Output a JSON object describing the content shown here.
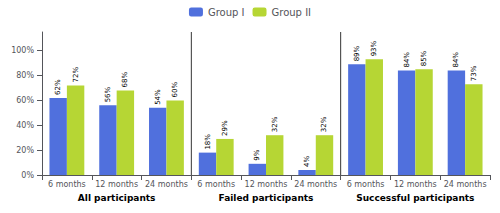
{
  "chart_data": {
    "type": "bar",
    "categories": [
      "6 months",
      "12 months",
      "24 months",
      "6 months",
      "12 months",
      "24 months",
      "6 months",
      "12 months",
      "24 months"
    ],
    "annotations": [
      "All participants",
      "Failed participants",
      "Successful participants"
    ],
    "series": [
      {
        "name": "Group I",
        "values": [
          62,
          56,
          54,
          18,
          9,
          4,
          89,
          84,
          84
        ],
        "value_labels": [
          "62%",
          "56%",
          "54%",
          "18%",
          "9%",
          "4%",
          "89%",
          "84%",
          "84%"
        ]
      },
      {
        "name": "Group II",
        "values": [
          72,
          68,
          60,
          29,
          32,
          32,
          93,
          85,
          73
        ],
        "value_labels": [
          "72%",
          "68%",
          "60%",
          "29%",
          "32%",
          "32%",
          "93%",
          "85%",
          "73%"
        ]
      }
    ],
    "ylim": [
      0,
      115
    ],
    "yticks": [
      {
        "value": 0,
        "label": "0%"
      },
      {
        "value": 20,
        "label": "20%"
      },
      {
        "value": 40,
        "label": "40%"
      },
      {
        "value": 60,
        "label": "60%"
      },
      {
        "value": 80,
        "label": "80%"
      },
      {
        "value": 100,
        "label": "100%"
      }
    ],
    "grid": false,
    "legend": "top",
    "data_labels": true
  }
}
